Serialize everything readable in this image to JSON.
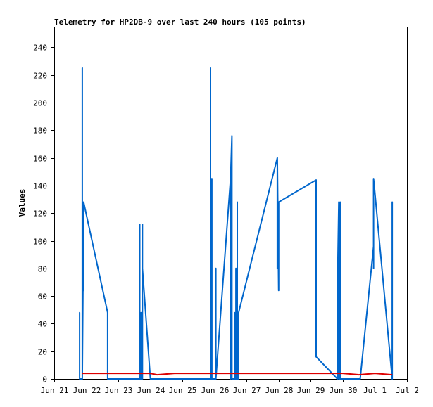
{
  "chart_data": {
    "type": "line",
    "title": "Telemetry for HP2DB-9 over last 240 hours (105 points)",
    "xlabel": "",
    "ylabel": "Values",
    "xlim": [
      "2024-06-21T00:00",
      "2024-07-02T00:00"
    ],
    "ylim": [
      0,
      255
    ],
    "x_ticks": [
      {
        "x": "2024-06-21T00:00",
        "label": "Jun 21"
      },
      {
        "x": "2024-06-22T00:00",
        "label": "Jun 22"
      },
      {
        "x": "2024-06-23T00:00",
        "label": "Jun 23"
      },
      {
        "x": "2024-06-24T00:00",
        "label": "Jun 24"
      },
      {
        "x": "2024-06-25T00:00",
        "label": "Jun 25"
      },
      {
        "x": "2024-06-26T00:00",
        "label": "Jun 26"
      },
      {
        "x": "2024-06-27T00:00",
        "label": "Jun 27"
      },
      {
        "x": "2024-06-28T00:00",
        "label": "Jun 28"
      },
      {
        "x": "2024-06-29T00:00",
        "label": "Jun 29"
      },
      {
        "x": "2024-06-30T00:00",
        "label": "Jun 30"
      },
      {
        "x": "2024-07-01T00:00",
        "label": "Jul 1"
      },
      {
        "x": "2024-07-02T00:00",
        "label": "Jul 2"
      }
    ],
    "y_ticks": [
      0,
      20,
      40,
      60,
      80,
      100,
      120,
      140,
      160,
      180,
      200,
      220,
      240
    ],
    "grid": false,
    "legend": "none",
    "series": [
      {
        "color": "#0066cc",
        "points": [
          [
            "2024-06-21T19:00",
            0
          ],
          [
            "2024-06-21T19:00",
            48
          ],
          [
            "2024-06-21T19:00",
            0
          ],
          [
            "2024-06-21T21:00",
            0
          ],
          [
            "2024-06-21T21:00",
            225
          ],
          [
            "2024-06-21T21:00",
            0
          ],
          [
            "2024-06-21T22:00",
            128
          ],
          [
            "2024-06-21T22:00",
            64
          ],
          [
            "2024-06-21T22:00",
            128
          ],
          [
            "2024-06-22T16:00",
            48
          ],
          [
            "2024-06-22T16:00",
            0
          ],
          [
            "2024-06-23T16:00",
            0
          ],
          [
            "2024-06-23T16:00",
            57
          ],
          [
            "2024-06-23T16:00",
            112
          ],
          [
            "2024-06-23T16:00",
            0
          ],
          [
            "2024-06-23T17:00",
            0
          ],
          [
            "2024-06-23T17:00",
            48
          ],
          [
            "2024-06-23T17:00",
            0
          ],
          [
            "2024-06-23T18:00",
            0
          ],
          [
            "2024-06-23T18:00",
            112
          ],
          [
            "2024-06-23T18:00",
            80
          ],
          [
            "2024-06-24T00:00",
            0
          ],
          [
            "2024-06-25T21:00",
            0
          ],
          [
            "2024-06-25T21:00",
            225
          ],
          [
            "2024-06-25T21:00",
            0
          ],
          [
            "2024-06-25T22:00",
            0
          ],
          [
            "2024-06-25T22:00",
            145
          ],
          [
            "2024-06-25T22:00",
            128
          ],
          [
            "2024-06-25T22:00",
            0
          ],
          [
            "2024-06-26T00:00",
            0
          ],
          [
            "2024-06-26T01:00",
            0
          ],
          [
            "2024-06-26T01:00",
            80
          ],
          [
            "2024-06-26T01:00",
            0
          ],
          [
            "2024-06-26T12:00",
            145
          ],
          [
            "2024-06-26T12:00",
            0
          ],
          [
            "2024-06-26T12:00",
            145
          ],
          [
            "2024-06-26T13:00",
            176
          ],
          [
            "2024-06-26T13:00",
            0
          ],
          [
            "2024-06-26T15:00",
            0
          ],
          [
            "2024-06-26T15:00",
            48
          ],
          [
            "2024-06-26T15:00",
            0
          ],
          [
            "2024-06-26T16:00",
            0
          ],
          [
            "2024-06-26T16:00",
            80
          ],
          [
            "2024-06-26T16:00",
            0
          ],
          [
            "2024-06-26T17:00",
            0
          ],
          [
            "2024-06-26T17:00",
            128
          ],
          [
            "2024-06-26T17:00",
            48
          ],
          [
            "2024-06-26T17:00",
            0
          ],
          [
            "2024-06-26T18:00",
            0
          ],
          [
            "2024-06-26T18:00",
            48
          ],
          [
            "2024-06-27T23:00",
            160
          ],
          [
            "2024-06-27T23:00",
            80
          ],
          [
            "2024-06-27T23:00",
            160
          ],
          [
            "2024-06-28T00:00",
            64
          ],
          [
            "2024-06-28T00:00",
            128
          ],
          [
            "2024-06-29T04:00",
            144
          ],
          [
            "2024-06-29T04:00",
            16
          ],
          [
            "2024-06-29T20:00",
            0
          ],
          [
            "2024-06-29T20:00",
            64
          ],
          [
            "2024-06-29T21:00",
            128
          ],
          [
            "2024-06-29T21:00",
            0
          ],
          [
            "2024-06-29T22:00",
            0
          ],
          [
            "2024-06-29T22:00",
            128
          ],
          [
            "2024-06-29T22:00",
            0
          ],
          [
            "2024-06-30T13:00",
            0
          ],
          [
            "2024-06-30T23:00",
            96
          ],
          [
            "2024-06-30T23:00",
            80
          ],
          [
            "2024-06-30T23:00",
            145
          ],
          [
            "2024-07-01T13:00",
            0
          ],
          [
            "2024-07-01T13:00",
            64
          ],
          [
            "2024-07-01T13:00",
            128
          ],
          [
            "2024-07-01T13:00",
            0
          ]
        ]
      },
      {
        "color": "#dd0000",
        "points": [
          [
            "2024-06-21T21:00",
            4
          ],
          [
            "2024-06-22T12:00",
            4
          ],
          [
            "2024-06-23T12:00",
            4
          ],
          [
            "2024-06-24T00:00",
            4
          ],
          [
            "2024-06-24T05:00",
            3
          ],
          [
            "2024-06-24T18:00",
            4
          ],
          [
            "2024-06-25T12:00",
            4
          ],
          [
            "2024-06-26T12:00",
            4
          ],
          [
            "2024-06-27T12:00",
            4
          ],
          [
            "2024-06-28T12:00",
            4
          ],
          [
            "2024-06-29T12:00",
            4
          ],
          [
            "2024-06-30T00:00",
            4
          ],
          [
            "2024-06-30T12:00",
            3
          ],
          [
            "2024-07-01T00:00",
            4
          ],
          [
            "2024-07-01T13:00",
            3
          ]
        ]
      }
    ]
  }
}
